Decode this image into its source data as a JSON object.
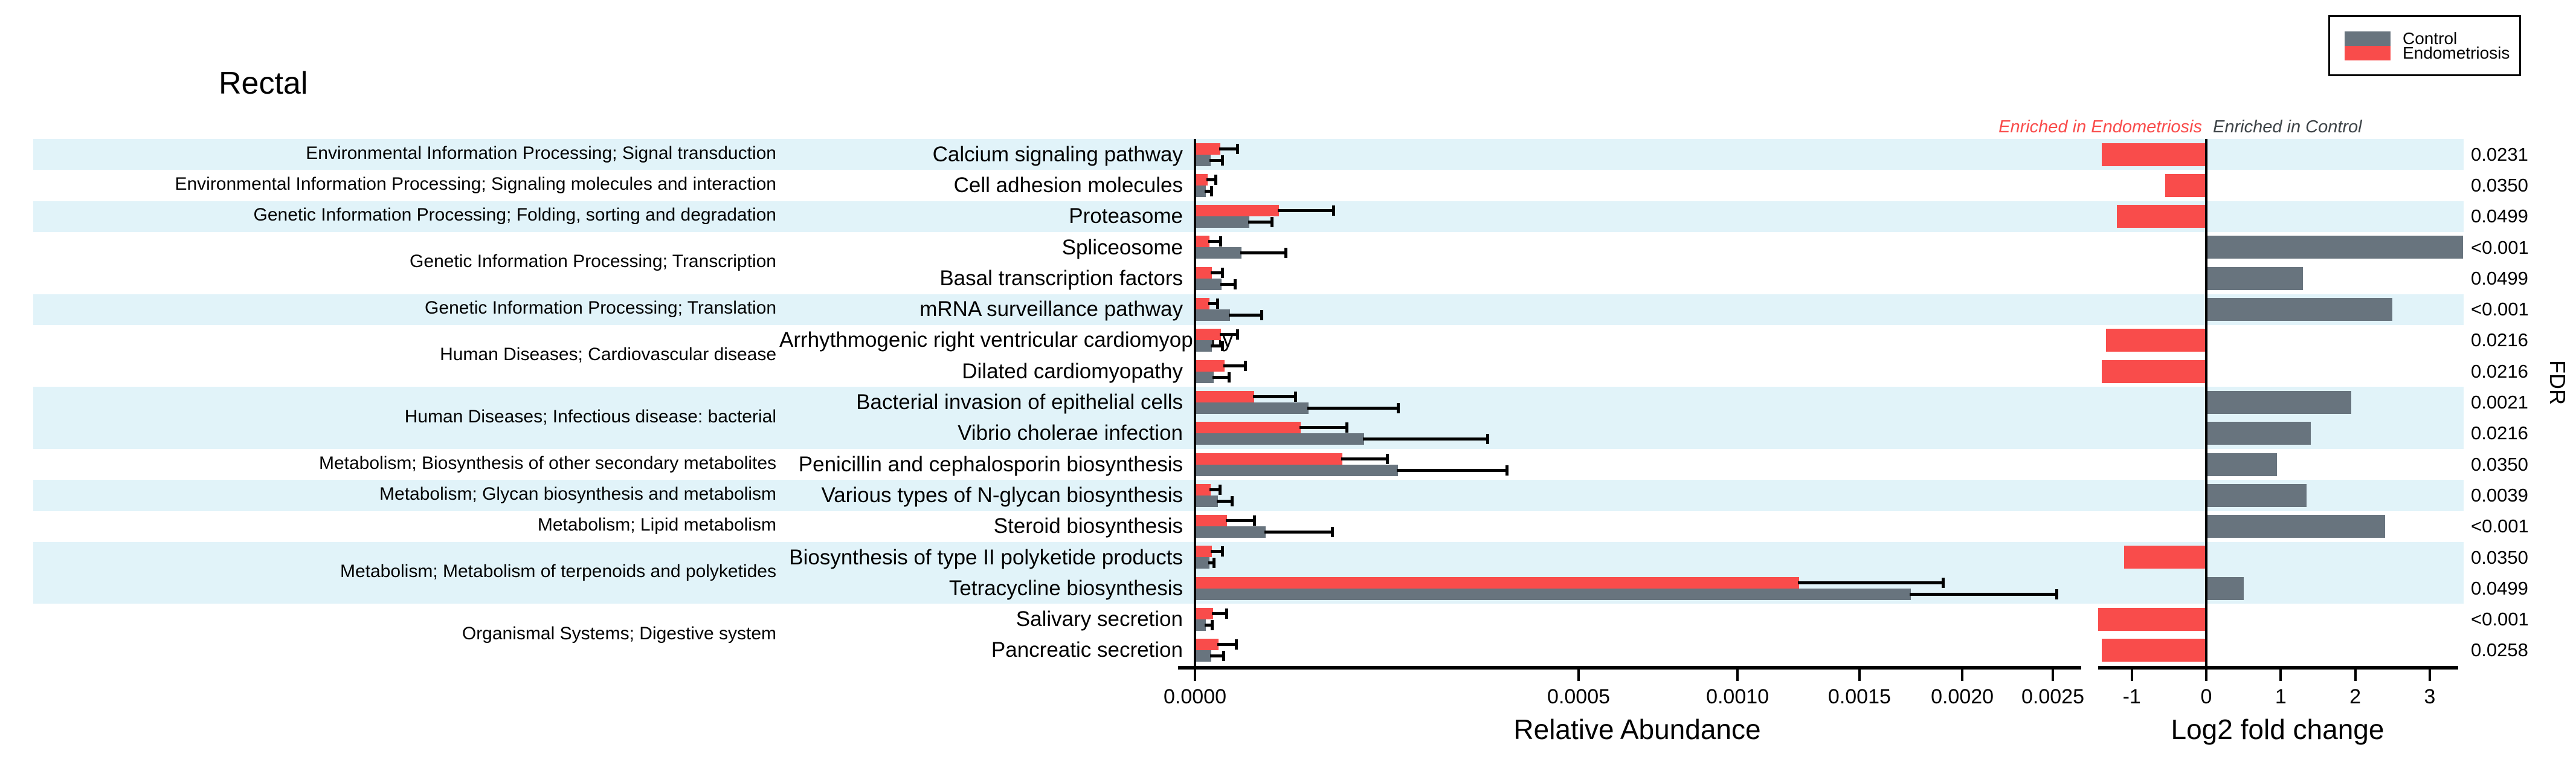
{
  "title": "Rectal",
  "legend": {
    "items": [
      {
        "label": "Control",
        "color": "#68747e"
      },
      {
        "label": "Endometriosis",
        "color": "#f94c4b"
      }
    ]
  },
  "annotations": {
    "enriched_left": "Enriched in Endometriosis",
    "enriched_left_color": "#f94c4b",
    "enriched_right": "Enriched in Control",
    "enriched_right_color": "#3d4347"
  },
  "fdr_axis_label": "FDR",
  "colors": {
    "band_blue": "#e1f3f9",
    "band_white": "#ffffff",
    "control": "#68747e",
    "endometriosis": "#f94c4b"
  },
  "chart_data": {
    "type": "bar",
    "orientation": "horizontal",
    "panels": [
      {
        "name": "relative_abundance",
        "xlabel": "Relative Abundance",
        "scale": "sqrt",
        "ticks": [
          0,
          0.0005,
          0.001,
          0.0015,
          0.002,
          0.0025
        ],
        "tick_labels": [
          "0.0000",
          "0.0005",
          "0.0010",
          "0.0015",
          "0.0020",
          "0.0025"
        ],
        "xlim": [
          0,
          0.0026
        ]
      },
      {
        "name": "log2_fold_change",
        "xlabel": "Log2 fold change",
        "scale": "linear",
        "ticks": [
          -1,
          0,
          1,
          2,
          3
        ],
        "tick_labels": [
          "-1",
          "0",
          "1",
          "2",
          "3"
        ],
        "xlim": [
          -1.45,
          3.45
        ]
      }
    ],
    "series": [
      "Endometriosis",
      "Control"
    ],
    "groups": [
      {
        "label": "Environmental Information Processing; Signal transduction",
        "count": 1,
        "band": "blue"
      },
      {
        "label": "Environmental Information Processing; Signaling molecules and interaction",
        "count": 1,
        "band": "white"
      },
      {
        "label": "Genetic Information Processing; Folding, sorting and degradation",
        "count": 1,
        "band": "blue"
      },
      {
        "label": "Genetic Information Processing; Transcription",
        "count": 2,
        "band": "white"
      },
      {
        "label": "Genetic Information Processing; Translation",
        "count": 1,
        "band": "blue"
      },
      {
        "label": "Human Diseases; Cardiovascular disease",
        "count": 2,
        "band": "white"
      },
      {
        "label": "Human Diseases; Infectious disease: bacterial",
        "count": 2,
        "band": "blue"
      },
      {
        "label": "Metabolism; Biosynthesis of other secondary metabolites",
        "count": 1,
        "band": "white"
      },
      {
        "label": "Metabolism; Glycan biosynthesis and metabolism",
        "count": 1,
        "band": "blue"
      },
      {
        "label": "Metabolism; Lipid metabolism",
        "count": 1,
        "band": "white"
      },
      {
        "label": "Metabolism; Metabolism of terpenoids and polyketides",
        "count": 2,
        "band": "blue"
      },
      {
        "label": "Organismal Systems; Digestive system",
        "count": 2,
        "band": "white"
      }
    ],
    "rows": [
      {
        "pathway": "Calcium signaling pathway",
        "endometriosis": {
          "abundance": 2.2e-06,
          "err_hi": 6.1e-06
        },
        "control": {
          "abundance": 8.4e-07,
          "err_hi": 2.5e-06
        },
        "log2fc": -1.4,
        "fdr": "0.0231"
      },
      {
        "pathway": "Cell adhesion molecules",
        "endometriosis": {
          "abundance": 5.5e-07,
          "err_hi": 1.4e-06
        },
        "control": {
          "abundance": 4e-07,
          "err_hi": 9e-07
        },
        "log2fc": -0.55,
        "fdr": "0.0350"
      },
      {
        "pathway": "Proteasome",
        "endometriosis": {
          "abundance": 2.4e-05,
          "err_hi": 6.5e-05
        },
        "control": {
          "abundance": 1e-05,
          "err_hi": 2e-05
        },
        "log2fc": -1.2,
        "fdr": "0.0499"
      },
      {
        "pathway": "Spliceosome",
        "endometriosis": {
          "abundance": 7e-07,
          "err_hi": 2.2e-06
        },
        "control": {
          "abundance": 7.4e-06,
          "err_hi": 2.8e-05
        },
        "log2fc": 3.45,
        "fdr": "<0.001"
      },
      {
        "pathway": "Basal transcription factors",
        "endometriosis": {
          "abundance": 1e-06,
          "err_hi": 2.5e-06
        },
        "control": {
          "abundance": 2.4e-06,
          "err_hi": 5.4e-06
        },
        "log2fc": 1.3,
        "fdr": "0.0499"
      },
      {
        "pathway": "mRNA surveillance pathway",
        "endometriosis": {
          "abundance": 7e-07,
          "err_hi": 1.7e-06
        },
        "control": {
          "abundance": 4.2e-06,
          "err_hi": 1.5e-05
        },
        "log2fc": 2.5,
        "fdr": "<0.001"
      },
      {
        "pathway": "Arrhythmogenic right ventricular cardiomyopathy",
        "endometriosis": {
          "abundance": 2.3e-06,
          "err_hi": 6.1e-06
        },
        "control": {
          "abundance": 9.7e-07,
          "err_hi": 2.5e-06
        },
        "log2fc": -1.35,
        "fdr": "0.0216"
      },
      {
        "pathway": "Dilated cardiomyopathy",
        "endometriosis": {
          "abundance": 3e-06,
          "err_hi": 8.5e-06
        },
        "control": {
          "abundance": 1.2e-06,
          "err_hi": 3.9e-06
        },
        "log2fc": -1.4,
        "fdr": "0.0216"
      },
      {
        "pathway": "Bacterial invasion of epithelial cells",
        "endometriosis": {
          "abundance": 1.2e-05,
          "err_hi": 3.4e-05
        },
        "control": {
          "abundance": 4.4e-05,
          "err_hi": 0.00014
        },
        "log2fc": 1.95,
        "fdr": "0.0021"
      },
      {
        "pathway": "Vibrio cholerae infection",
        "endometriosis": {
          "abundance": 3.8e-05,
          "err_hi": 7.8e-05
        },
        "control": {
          "abundance": 9.7e-05,
          "err_hi": 0.00029
        },
        "log2fc": 1.4,
        "fdr": "0.0216"
      },
      {
        "pathway": "Penicillin and cephalosporin biosynthesis",
        "endometriosis": {
          "abundance": 7.4e-05,
          "err_hi": 0.000125
        },
        "control": {
          "abundance": 0.00014,
          "err_hi": 0.00033
        },
        "log2fc": 0.95,
        "fdr": "0.0350"
      },
      {
        "pathway": "Various types of N-glycan biosynthesis",
        "endometriosis": {
          "abundance": 8.4e-07,
          "err_hi": 2.1e-06
        },
        "control": {
          "abundance": 1.8e-06,
          "err_hi": 4.6e-06
        },
        "log2fc": 1.35,
        "fdr": "0.0039"
      },
      {
        "pathway": "Steroid biosynthesis",
        "endometriosis": {
          "abundance": 3.5e-06,
          "err_hi": 1.2e-05
        },
        "control": {
          "abundance": 1.7e-05,
          "err_hi": 6.4e-05
        },
        "log2fc": 2.4,
        "fdr": "<0.001"
      },
      {
        "pathway": "Biosynthesis of type II polyketide products",
        "endometriosis": {
          "abundance": 9.7e-07,
          "err_hi": 2.5e-06
        },
        "control": {
          "abundance": 7.1e-07,
          "err_hi": 1.2e-06
        },
        "log2fc": -1.1,
        "fdr": "0.0350"
      },
      {
        "pathway": "Tetracycline biosynthesis",
        "endometriosis": {
          "abundance": 0.00124,
          "err_hi": 0.0019
        },
        "control": {
          "abundance": 0.00174,
          "err_hi": 0.00252
        },
        "log2fc": 0.5,
        "fdr": "0.0499"
      },
      {
        "pathway": "Salivary secretion",
        "endometriosis": {
          "abundance": 1.1e-06,
          "err_hi": 3.4e-06
        },
        "control": {
          "abundance": 4e-07,
          "err_hi": 9.7e-07
        },
        "log2fc": -1.45,
        "fdr": "<0.001"
      },
      {
        "pathway": "Pancreatic secretion",
        "endometriosis": {
          "abundance": 1.9e-06,
          "err_hi": 5.7e-06
        },
        "control": {
          "abundance": 9e-07,
          "err_hi": 2.7e-06
        },
        "log2fc": -1.4,
        "fdr": "0.0258"
      }
    ]
  }
}
